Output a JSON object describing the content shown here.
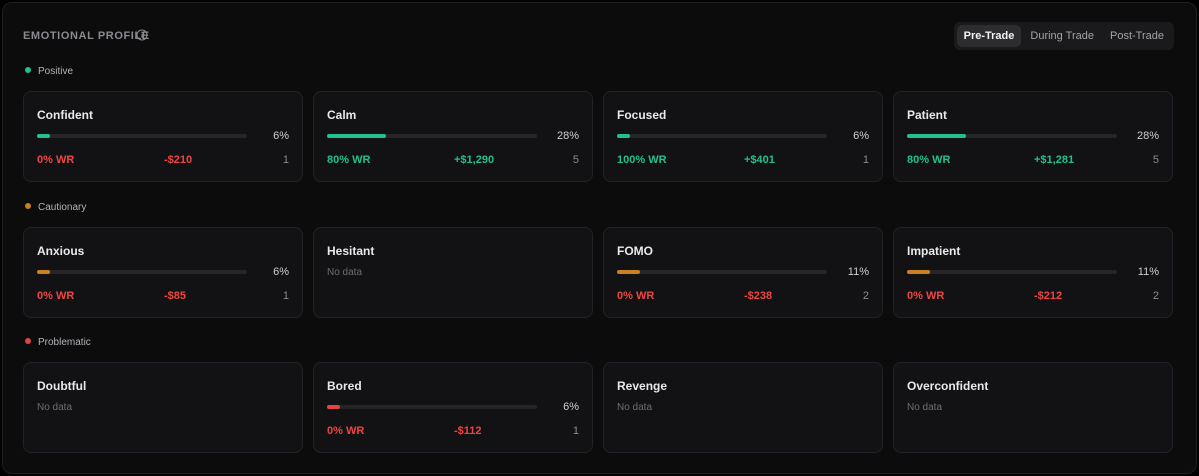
{
  "header": {
    "title": "EMOTIONAL PROFILE"
  },
  "tabs": [
    {
      "label": "Pre-Trade",
      "active": true
    },
    {
      "label": "During Trade",
      "active": false
    },
    {
      "label": "Post-Trade",
      "active": false
    }
  ],
  "colors": {
    "positive": "#22c08b",
    "cautionary": "#c9801e",
    "problematic": "#e04545",
    "win": "#22c08b",
    "loss": "#ef4444"
  },
  "sections": [
    {
      "label": "Positive",
      "tone": "positive",
      "cards": [
        {
          "name": "Confident",
          "pct": 6,
          "pct_label": "6%",
          "wr": "0% WR",
          "pnl": "-$210",
          "count": "1",
          "wr_good": false,
          "pnl_good": false
        },
        {
          "name": "Calm",
          "pct": 28,
          "pct_label": "28%",
          "wr": "80% WR",
          "pnl": "+$1,290",
          "count": "5",
          "wr_good": true,
          "pnl_good": true
        },
        {
          "name": "Focused",
          "pct": 6,
          "pct_label": "6%",
          "wr": "100% WR",
          "pnl": "+$401",
          "count": "1",
          "wr_good": true,
          "pnl_good": true
        },
        {
          "name": "Patient",
          "pct": 28,
          "pct_label": "28%",
          "wr": "80% WR",
          "pnl": "+$1,281",
          "count": "5",
          "wr_good": true,
          "pnl_good": true
        }
      ]
    },
    {
      "label": "Cautionary",
      "tone": "cautionary",
      "cards": [
        {
          "name": "Anxious",
          "pct": 6,
          "pct_label": "6%",
          "wr": "0% WR",
          "pnl": "-$85",
          "count": "1",
          "wr_good": false,
          "pnl_good": false
        },
        {
          "name": "Hesitant",
          "no_data": "No data"
        },
        {
          "name": "FOMO",
          "pct": 11,
          "pct_label": "11%",
          "wr": "0% WR",
          "pnl": "-$238",
          "count": "2",
          "wr_good": false,
          "pnl_good": false
        },
        {
          "name": "Impatient",
          "pct": 11,
          "pct_label": "11%",
          "wr": "0% WR",
          "pnl": "-$212",
          "count": "2",
          "wr_good": false,
          "pnl_good": false
        }
      ]
    },
    {
      "label": "Problematic",
      "tone": "problematic",
      "cards": [
        {
          "name": "Doubtful",
          "no_data": "No data"
        },
        {
          "name": "Bored",
          "pct": 6,
          "pct_label": "6%",
          "wr": "0% WR",
          "pnl": "-$112",
          "count": "1",
          "wr_good": false,
          "pnl_good": false
        },
        {
          "name": "Revenge",
          "no_data": "No data"
        },
        {
          "name": "Overconfident",
          "no_data": "No data"
        }
      ]
    }
  ]
}
